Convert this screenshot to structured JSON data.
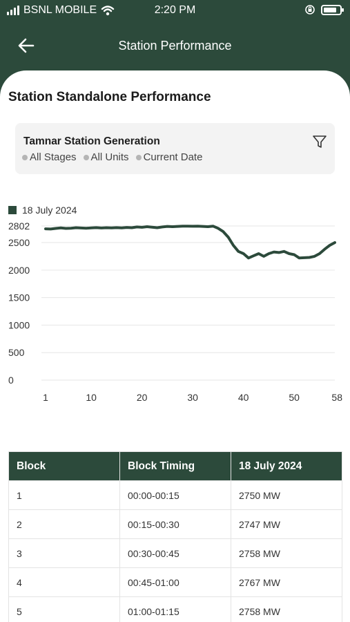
{
  "status_bar": {
    "carrier": "BSNL MOBILE",
    "time": "2:20 PM"
  },
  "header": {
    "title": "Station Performance",
    "back_icon": "arrow-left-icon"
  },
  "page": {
    "title": "Station Standalone Performance"
  },
  "filter_card": {
    "title": "Tamnar Station Generation",
    "chips": [
      "All Stages",
      "All Units",
      "Current Date"
    ],
    "filter_icon": "funnel-icon"
  },
  "chart_data": {
    "type": "line",
    "legend_position": "top-left",
    "grid": true,
    "x_ticks": [
      1,
      10,
      20,
      30,
      40,
      50,
      58
    ],
    "y_ticks": [
      0,
      500,
      1000,
      1500,
      2000,
      2500,
      2802
    ],
    "xlim": [
      1,
      58
    ],
    "ylim": [
      0,
      2802
    ],
    "series": [
      {
        "name": "18 July 2024",
        "color": "#2c4a3b",
        "x": [
          1,
          2,
          3,
          4,
          5,
          6,
          7,
          8,
          9,
          10,
          11,
          12,
          13,
          14,
          15,
          16,
          17,
          18,
          19,
          20,
          21,
          22,
          23,
          24,
          25,
          26,
          27,
          28,
          29,
          30,
          31,
          32,
          33,
          34,
          35,
          36,
          37,
          38,
          39,
          40,
          41,
          42,
          43,
          44,
          45,
          46,
          47,
          48,
          49,
          50,
          51,
          52,
          53,
          54,
          55,
          56,
          57,
          58
        ],
        "y": [
          2750,
          2747,
          2758,
          2767,
          2758,
          2762,
          2770,
          2765,
          2760,
          2768,
          2772,
          2765,
          2770,
          2768,
          2772,
          2768,
          2775,
          2770,
          2785,
          2778,
          2790,
          2780,
          2770,
          2785,
          2795,
          2790,
          2795,
          2800,
          2798,
          2797,
          2798,
          2795,
          2790,
          2800,
          2760,
          2700,
          2600,
          2450,
          2340,
          2300,
          2220,
          2260,
          2300,
          2250,
          2300,
          2330,
          2320,
          2340,
          2300,
          2280,
          2220,
          2225,
          2230,
          2250,
          2300,
          2380,
          2450,
          2500
        ]
      }
    ]
  },
  "table": {
    "headers": [
      "Block",
      "Block Timing",
      "18 July 2024"
    ],
    "rows": [
      [
        "1",
        "00:00-00:15",
        "2750 MW"
      ],
      [
        "2",
        "00:15-00:30",
        "2747 MW"
      ],
      [
        "3",
        "00:30-00:45",
        "2758 MW"
      ],
      [
        "4",
        "00:45-01:00",
        "2767 MW"
      ],
      [
        "5",
        "01:00-01:15",
        "2758 MW"
      ]
    ]
  }
}
